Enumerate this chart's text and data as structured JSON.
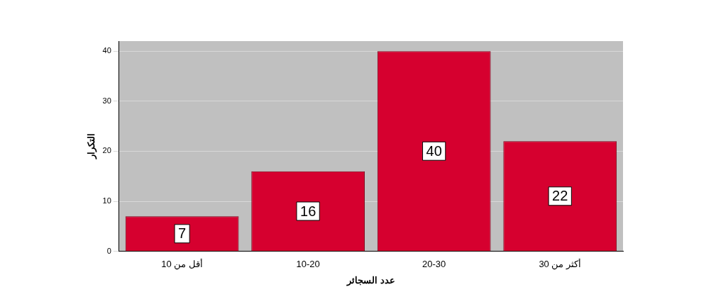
{
  "chart_data": {
    "type": "bar",
    "xlabel": "عدد السجائر",
    "ylabel": "التكرار",
    "categories": [
      "أقل من 10",
      "10-20",
      "20-30",
      "أكثر من 30"
    ],
    "values": [
      7,
      16,
      40,
      22
    ],
    "color": "#d6002f",
    "ylim": [
      0,
      42
    ],
    "yticks": [
      0,
      10,
      20,
      30,
      40
    ],
    "grid": "y",
    "data_labels": true,
    "legend": false
  }
}
